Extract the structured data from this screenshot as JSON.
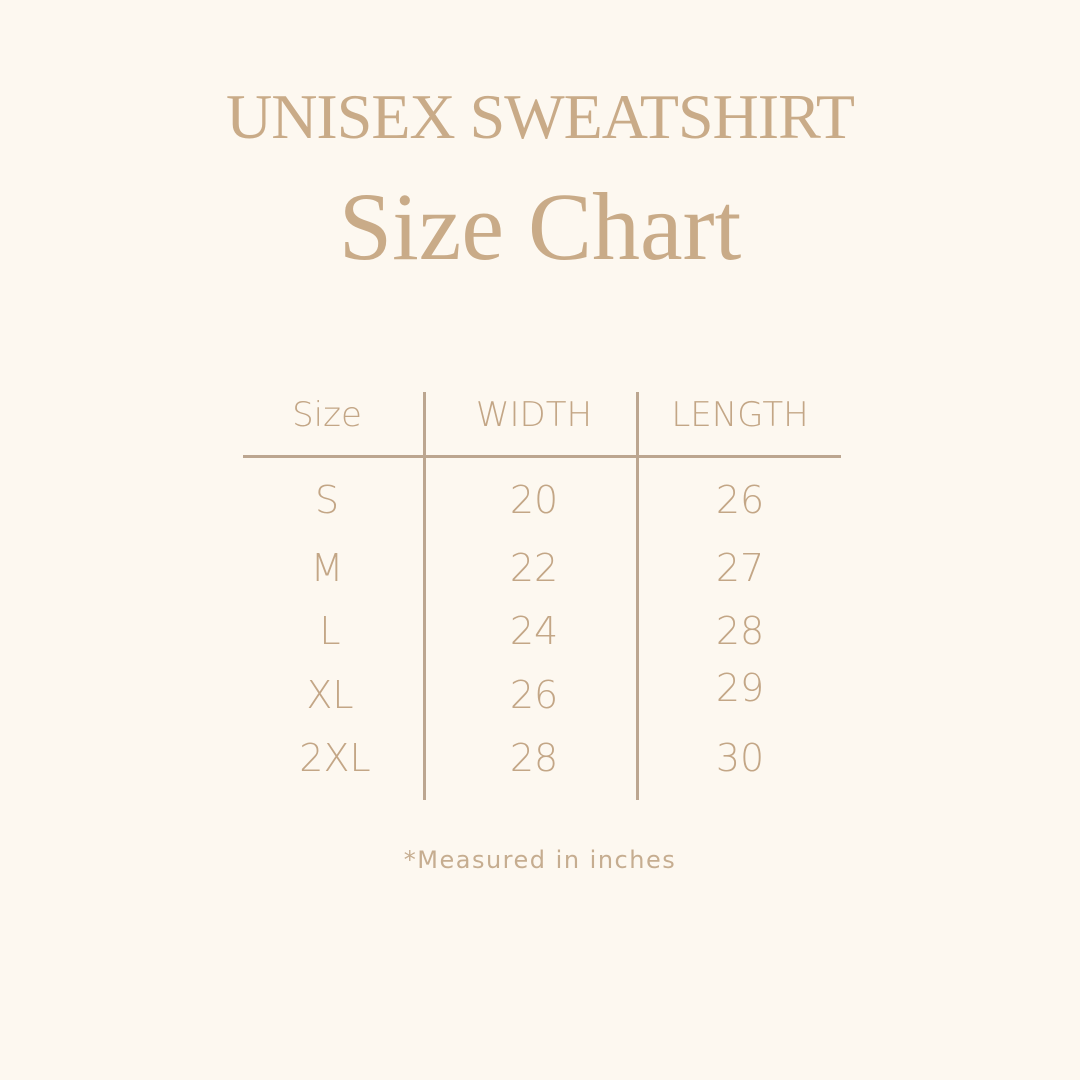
{
  "title": {
    "line1": "UNISEX SWEATSHIRT",
    "line2": "Size Chart"
  },
  "colors": {
    "background": "#fdf8f0",
    "text": "#c6a885",
    "rules": "#bca690"
  },
  "table": {
    "headers": [
      "Size",
      "WIDTH",
      "LENGTH"
    ],
    "rows": [
      [
        "S",
        "20",
        "26"
      ],
      [
        "M",
        "22",
        "27"
      ],
      [
        "L",
        "24",
        "28"
      ],
      [
        "XL",
        "26",
        "29"
      ],
      [
        "2XL",
        "28",
        "30"
      ]
    ]
  },
  "footnote": "*Measured in inches"
}
